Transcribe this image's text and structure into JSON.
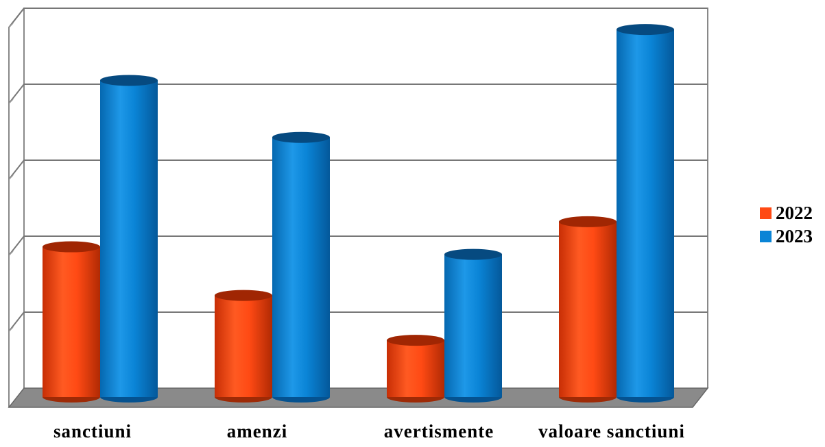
{
  "chart_data": {
    "type": "bar",
    "style": "3d-cylinder",
    "categories": [
      "sanctiuni",
      "amenzi",
      "avertismente",
      "valoare sanctiuni"
    ],
    "series": [
      {
        "name": "2022",
        "color": "#FF4A14",
        "values": [
          1.95,
          1.31,
          0.72,
          2.28
        ]
      },
      {
        "name": "2023",
        "color": "#0A84D6",
        "values": [
          4.14,
          3.39,
          1.85,
          4.81
        ]
      }
    ],
    "ylim": [
      0,
      5
    ],
    "y_tick_labels_visible": false,
    "grid": true,
    "legend": "right",
    "title": "",
    "xlabel": "",
    "ylabel": ""
  }
}
